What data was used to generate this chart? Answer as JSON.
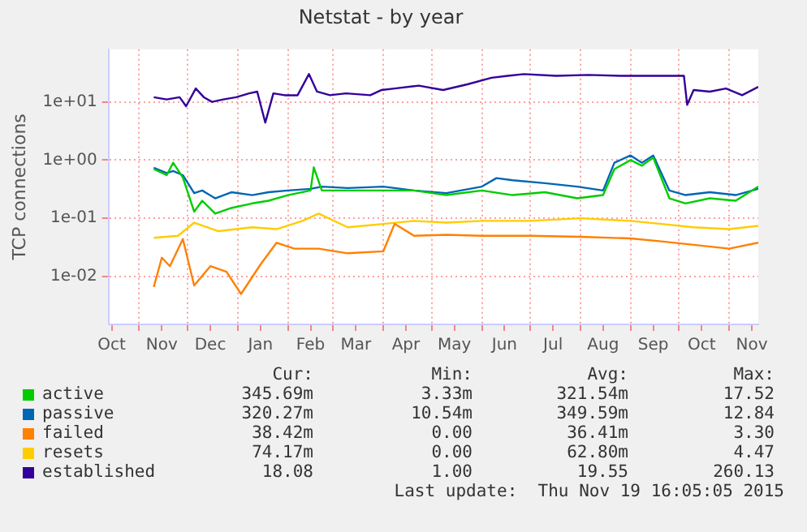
{
  "chart_data": {
    "type": "line",
    "title": "Netstat - by year",
    "ylabel": "TCP connections",
    "log": "y",
    "grid": true,
    "legend": "bottom",
    "marker": "none",
    "line_style": "solid",
    "xlim": [
      "2014-10-13",
      "2015-11-19"
    ],
    "ylim": [
      0.0015,
      80
    ],
    "yticks": [
      {
        "value": 0.01,
        "label": "1e-02"
      },
      {
        "value": 0.1,
        "label": "1e-01"
      },
      {
        "value": 1,
        "label": "1e+00"
      },
      {
        "value": 10,
        "label": "1e+01"
      }
    ],
    "xticks": [
      {
        "value": "2014-10-15",
        "label": "Oct"
      },
      {
        "value": "2014-11-01",
        "label": null
      },
      {
        "value": "2014-11-15",
        "label": "Nov"
      },
      {
        "value": "2014-12-01",
        "label": null
      },
      {
        "value": "2014-12-15",
        "label": "Dec"
      },
      {
        "value": "2015-01-01",
        "label": null
      },
      {
        "value": "2015-01-15",
        "label": "Jan"
      },
      {
        "value": "2015-02-01",
        "label": null
      },
      {
        "value": "2015-02-15",
        "label": "Feb"
      },
      {
        "value": "2015-03-01",
        "label": null
      },
      {
        "value": "2015-03-15",
        "label": "Mar"
      },
      {
        "value": "2015-04-01",
        "label": null
      },
      {
        "value": "2015-04-15",
        "label": "Apr"
      },
      {
        "value": "2015-05-01",
        "label": null
      },
      {
        "value": "2015-05-15",
        "label": "May"
      },
      {
        "value": "2015-06-01",
        "label": null
      },
      {
        "value": "2015-06-15",
        "label": "Jun"
      },
      {
        "value": "2015-07-01",
        "label": null
      },
      {
        "value": "2015-07-15",
        "label": "Jul"
      },
      {
        "value": "2015-08-01",
        "label": null
      },
      {
        "value": "2015-08-15",
        "label": "Aug"
      },
      {
        "value": "2015-09-01",
        "label": null
      },
      {
        "value": "2015-09-15",
        "label": "Sep"
      },
      {
        "value": "2015-10-01",
        "label": null
      },
      {
        "value": "2015-10-15",
        "label": "Oct"
      },
      {
        "value": "2015-11-01",
        "label": null
      },
      {
        "value": "2015-11-15",
        "label": "Nov"
      }
    ],
    "series": [
      {
        "name": "active",
        "color": "#00cc00",
        "x": [
          "2014-11-10",
          "2014-11-18",
          "2014-11-22",
          "2014-11-28",
          "2014-12-05",
          "2014-12-10",
          "2014-12-18",
          "2014-12-28",
          "2015-01-10",
          "2015-01-20",
          "2015-02-01",
          "2015-02-15",
          "2015-02-17",
          "2015-02-22",
          "2015-03-10",
          "2015-04-01",
          "2015-04-20",
          "2015-05-10",
          "2015-06-01",
          "2015-06-20",
          "2015-07-10",
          "2015-07-30",
          "2015-08-15",
          "2015-08-22",
          "2015-09-01",
          "2015-09-08",
          "2015-09-15",
          "2015-09-25",
          "2015-10-05",
          "2015-10-20",
          "2015-11-05",
          "2015-11-19"
        ],
        "values": [
          0.7,
          0.55,
          0.9,
          0.5,
          0.13,
          0.2,
          0.12,
          0.15,
          0.18,
          0.2,
          0.25,
          0.3,
          0.75,
          0.3,
          0.3,
          0.3,
          0.3,
          0.25,
          0.3,
          0.25,
          0.28,
          0.22,
          0.25,
          0.7,
          1.0,
          0.8,
          1.1,
          0.22,
          0.18,
          0.22,
          0.2,
          0.35
        ]
      },
      {
        "name": "passive",
        "color": "#0066b3",
        "x": [
          "2014-11-10",
          "2014-11-18",
          "2014-11-22",
          "2014-11-28",
          "2014-12-05",
          "2014-12-10",
          "2014-12-18",
          "2014-12-28",
          "2015-01-10",
          "2015-01-20",
          "2015-02-01",
          "2015-02-15",
          "2015-02-22",
          "2015-03-10",
          "2015-04-01",
          "2015-04-20",
          "2015-05-10",
          "2015-06-01",
          "2015-06-10",
          "2015-06-20",
          "2015-07-10",
          "2015-07-30",
          "2015-08-15",
          "2015-08-22",
          "2015-09-01",
          "2015-09-08",
          "2015-09-15",
          "2015-09-25",
          "2015-10-05",
          "2015-10-20",
          "2015-11-05",
          "2015-11-19"
        ],
        "values": [
          0.74,
          0.6,
          0.65,
          0.55,
          0.27,
          0.3,
          0.22,
          0.28,
          0.25,
          0.28,
          0.3,
          0.32,
          0.35,
          0.33,
          0.35,
          0.3,
          0.27,
          0.35,
          0.49,
          0.45,
          0.4,
          0.35,
          0.3,
          0.9,
          1.2,
          0.9,
          1.2,
          0.3,
          0.25,
          0.28,
          0.25,
          0.32
        ]
      },
      {
        "name": "failed",
        "color": "#ff8000",
        "x": [
          "2014-11-10",
          "2014-11-15",
          "2014-11-20",
          "2014-11-28",
          "2014-12-05",
          "2014-12-15",
          "2014-12-25",
          "2015-01-03",
          "2015-01-15",
          "2015-01-25",
          "2015-02-05",
          "2015-02-20",
          "2015-03-10",
          "2015-04-01",
          "2015-04-08",
          "2015-04-20",
          "2015-05-10",
          "2015-06-01",
          "2015-07-01",
          "2015-08-01",
          "2015-09-01",
          "2015-09-20",
          "2015-10-10",
          "2015-11-01",
          "2015-11-19"
        ],
        "values": [
          0.0066,
          0.021,
          0.015,
          0.044,
          0.007,
          0.015,
          0.012,
          0.005,
          0.016,
          0.038,
          0.03,
          0.03,
          0.025,
          0.027,
          0.08,
          0.05,
          0.052,
          0.05,
          0.05,
          0.048,
          0.045,
          0.04,
          0.035,
          0.03,
          0.038
        ]
      },
      {
        "name": "resets",
        "color": "#ffcc00",
        "x": [
          "2014-11-10",
          "2014-11-25",
          "2014-12-05",
          "2014-12-20",
          "2015-01-10",
          "2015-01-25",
          "2015-02-10",
          "2015-02-20",
          "2015-03-10",
          "2015-04-01",
          "2015-04-20",
          "2015-05-10",
          "2015-06-01",
          "2015-07-01",
          "2015-08-01",
          "2015-09-01",
          "2015-09-20",
          "2015-10-10",
          "2015-11-01",
          "2015-11-19"
        ],
        "values": [
          0.046,
          0.05,
          0.084,
          0.06,
          0.07,
          0.065,
          0.09,
          0.12,
          0.07,
          0.08,
          0.09,
          0.084,
          0.09,
          0.09,
          0.1,
          0.09,
          0.08,
          0.07,
          0.065,
          0.074
        ]
      },
      {
        "name": "established",
        "color": "#330099",
        "x": [
          "2014-11-10",
          "2014-11-18",
          "2014-11-26",
          "2014-11-30",
          "2014-12-06",
          "2014-12-11",
          "2014-12-16",
          "2014-12-23",
          "2014-12-31",
          "2015-01-08",
          "2015-01-13",
          "2015-01-18",
          "2015-01-23",
          "2015-01-30",
          "2015-02-07",
          "2015-02-14",
          "2015-02-19",
          "2015-02-27",
          "2015-03-09",
          "2015-03-24",
          "2015-03-31",
          "2015-04-08",
          "2015-04-23",
          "2015-05-08",
          "2015-05-23",
          "2015-06-07",
          "2015-06-17",
          "2015-06-27",
          "2015-07-17",
          "2015-08-06",
          "2015-08-26",
          "2015-09-10",
          "2015-10-04",
          "2015-10-06",
          "2015-10-10",
          "2015-10-20",
          "2015-10-30",
          "2015-11-09",
          "2015-11-19"
        ],
        "values": [
          12,
          11,
          12,
          8.4,
          17,
          12,
          10,
          11,
          12,
          14,
          15,
          4.4,
          14,
          13,
          13,
          30,
          15,
          13,
          14,
          13,
          16,
          17,
          19,
          16,
          20,
          26,
          28,
          30,
          28,
          29,
          28,
          28,
          28,
          8.9,
          16,
          15,
          17,
          13,
          18.08
        ]
      }
    ],
    "annotations": [
      "Cur:",
      "Min:",
      "Avg:",
      "Max:",
      "345.69m",
      "3.33m",
      "321.54m",
      "17.52",
      "320.27m",
      "10.54m",
      "349.59m",
      "12.84",
      "38.42m",
      "0.00",
      "36.41m",
      "3.30",
      "74.17m",
      "0.00",
      "62.80m",
      "4.47",
      "18.08",
      "1.00",
      "19.55",
      "260.13",
      "Last update:  Thu Nov 19 16:05:05 2015"
    ]
  }
}
